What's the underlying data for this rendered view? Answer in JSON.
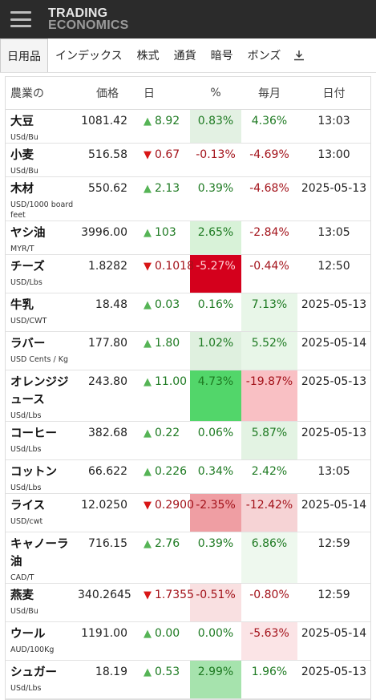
{
  "logo": {
    "line1": "TRADING",
    "line2": "ECONOMICS"
  },
  "tabs": [
    {
      "label": "日用品",
      "active": true
    },
    {
      "label": "インデックス"
    },
    {
      "label": "株式"
    },
    {
      "label": "通貨"
    },
    {
      "label": "暗号"
    },
    {
      "label": "ボンズ"
    }
  ],
  "icons": {
    "menu": "hamburger-menu-icon",
    "download": "download-icon"
  },
  "columns": [
    "農業の",
    "価格",
    "日",
    "%",
    "毎月",
    "日付"
  ],
  "colors": {
    "up_text": "#1e7a22",
    "down_text": "#a3121a",
    "up_arrow": "#56b456",
    "down_arrow": "#d81616"
  },
  "rows": [
    {
      "name": "大豆",
      "unit": "USd/Bu",
      "price": "1081.42",
      "dir": "up",
      "day": "8.92",
      "pct": "0.83%",
      "month": "4.36%",
      "date": "13:03",
      "pct_bg": "#e3f1e3",
      "month_bg": ""
    },
    {
      "name": "小麦",
      "unit": "USd/Bu",
      "price": "516.58",
      "dir": "down",
      "day": "0.67",
      "pct": "-0.13%",
      "month": "-4.69%",
      "date": "13:00",
      "pct_bg": "",
      "month_bg": ""
    },
    {
      "name": "木材",
      "unit": "USD/1000 board feet",
      "price": "550.62",
      "dir": "up",
      "day": "2.13",
      "pct": "0.39%",
      "month": "-4.68%",
      "date": "2025-05-13",
      "pct_bg": "",
      "month_bg": ""
    },
    {
      "name": "ヤシ油",
      "unit": "MYR/T",
      "price": "3996.00",
      "dir": "up",
      "day": "103",
      "pct": "2.65%",
      "month": "-2.84%",
      "date": "13:05",
      "pct_bg": "#d8f2d8",
      "month_bg": ""
    },
    {
      "name": "チーズ",
      "unit": "USD/Lbs",
      "price": "1.8282",
      "dir": "down",
      "day": "0.1018",
      "pct": "-5.27%",
      "month": "-0.44%",
      "date": "12:50",
      "pct_bg": "#d4001c",
      "month_bg": ""
    },
    {
      "name": "牛乳",
      "unit": "USD/CWT",
      "price": "18.48",
      "dir": "up",
      "day": "0.03",
      "pct": "0.16%",
      "month": "7.13%",
      "date": "2025-05-13",
      "pct_bg": "",
      "month_bg": "#e8f6e8"
    },
    {
      "name": "ラバー",
      "unit": "USD Cents / Kg",
      "price": "177.80",
      "dir": "up",
      "day": "1.80",
      "pct": "1.02%",
      "month": "5.52%",
      "date": "2025-05-14",
      "pct_bg": "#dff0df",
      "month_bg": "#e8f6e8"
    },
    {
      "name": "オレンジジュース",
      "unit": "USd/Lbs",
      "price": "243.80",
      "dir": "up",
      "day": "11.00",
      "pct": "4.73%",
      "month": "-19.87%",
      "date": "2025-05-13",
      "pct_bg": "#52d66a",
      "month_bg": "#f9c0c4"
    },
    {
      "name": "コーヒー",
      "unit": "USd/Lbs",
      "price": "382.68",
      "dir": "up",
      "day": "0.22",
      "pct": "0.06%",
      "month": "5.87%",
      "date": "2025-05-13",
      "pct_bg": "",
      "month_bg": "#e3f3e3"
    },
    {
      "name": "コットン",
      "unit": "USd/Lbs",
      "price": "66.622",
      "dir": "up",
      "day": "0.226",
      "pct": "0.34%",
      "month": "2.42%",
      "date": "13:05",
      "pct_bg": "",
      "month_bg": ""
    },
    {
      "name": "ライス",
      "unit": "USD/cwt",
      "price": "12.0250",
      "dir": "down",
      "day": "0.2900",
      "pct": "-2.35%",
      "month": "-12.42%",
      "date": "2025-05-14",
      "pct_bg": "#ef9ea3",
      "month_bg": "#f6d3d5"
    },
    {
      "name": "キャノーラ油",
      "unit": "CAD/T",
      "price": "716.15",
      "dir": "up",
      "day": "2.76",
      "pct": "0.39%",
      "month": "6.86%",
      "date": "12:59",
      "pct_bg": "",
      "month_bg": "#eef8ee"
    },
    {
      "name": "燕麦",
      "unit": "USd/Bu",
      "price": "340.2645",
      "dir": "down",
      "day": "1.7355",
      "pct": "-0.51%",
      "month": "-0.80%",
      "date": "12:59",
      "pct_bg": "#f9e0e1",
      "month_bg": ""
    },
    {
      "name": "ウール",
      "unit": "AUD/100Kg",
      "price": "1191.00",
      "dir": "up",
      "day": "0.00",
      "pct": "0.00%",
      "month": "-5.63%",
      "date": "2025-05-14",
      "pct_bg": "",
      "month_bg": "#fbe4e6"
    },
    {
      "name": "シュガー",
      "unit": "USd/Lbs",
      "price": "18.19",
      "dir": "up",
      "day": "0.53",
      "pct": "2.99%",
      "month": "1.96%",
      "date": "2025-05-13",
      "pct_bg": "#a6e3ad",
      "month_bg": ""
    }
  ]
}
